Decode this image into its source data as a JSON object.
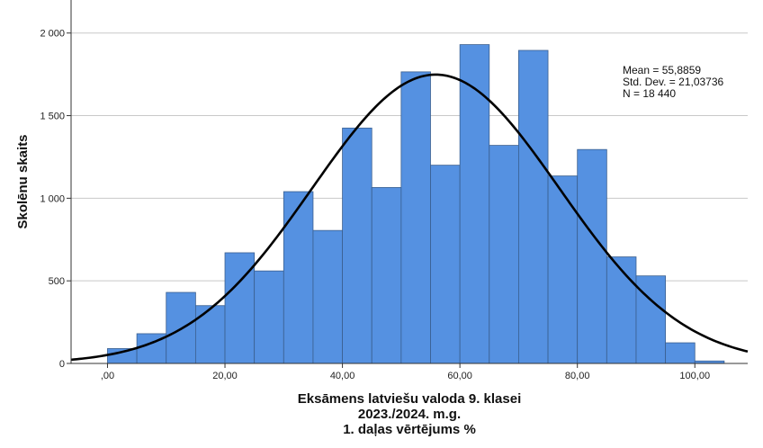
{
  "chart_data": {
    "type": "bar",
    "subtype": "histogram",
    "ylabel": "Skolēnu skaits",
    "xlabel_lines": [
      "Eksāmens latviešu valoda 9. klasei",
      "2023./2024. m.g.",
      "1. daļas vērtējums %"
    ],
    "stats_lines": [
      "Mean = 55,8859",
      "Std. Dev. = 21,03736",
      "N = 18 440"
    ],
    "mean": 55.8859,
    "std_dev": 21.03736,
    "n": 18440,
    "bin_width": 5,
    "x_range": [
      -6.2,
      109
    ],
    "ylim": [
      0,
      2200
    ],
    "x_ticks": [
      {
        "value": 0,
        "label": ",00"
      },
      {
        "value": 20,
        "label": "20,00"
      },
      {
        "value": 40,
        "label": "40,00"
      },
      {
        "value": 60,
        "label": "60,00"
      },
      {
        "value": 80,
        "label": "80,00"
      },
      {
        "value": 100,
        "label": "100,00"
      }
    ],
    "y_ticks": [
      {
        "value": 0,
        "label": "0"
      },
      {
        "value": 500,
        "label": "500"
      },
      {
        "value": 1000,
        "label": "1 000"
      },
      {
        "value": 1500,
        "label": "1 500"
      },
      {
        "value": 2000,
        "label": "2 000"
      }
    ],
    "grid": true,
    "bar_color": "#5591e1",
    "bar_edge_color": "#3a5f8f",
    "curve_color": "#000000",
    "bins": [
      {
        "x0": 0,
        "x1": 5,
        "count": 90
      },
      {
        "x0": 5,
        "x1": 10,
        "count": 180
      },
      {
        "x0": 10,
        "x1": 15,
        "count": 430
      },
      {
        "x0": 15,
        "x1": 20,
        "count": 350
      },
      {
        "x0": 20,
        "x1": 25,
        "count": 670
      },
      {
        "x0": 25,
        "x1": 30,
        "count": 560
      },
      {
        "x0": 30,
        "x1": 35,
        "count": 1040
      },
      {
        "x0": 35,
        "x1": 40,
        "count": 805
      },
      {
        "x0": 40,
        "x1": 45,
        "count": 1425
      },
      {
        "x0": 45,
        "x1": 50,
        "count": 1065
      },
      {
        "x0": 50,
        "x1": 55,
        "count": 1765
      },
      {
        "x0": 55,
        "x1": 60,
        "count": 1200
      },
      {
        "x0": 60,
        "x1": 65,
        "count": 1930
      },
      {
        "x0": 65,
        "x1": 70,
        "count": 1320
      },
      {
        "x0": 70,
        "x1": 75,
        "count": 1895
      },
      {
        "x0": 75,
        "x1": 80,
        "count": 1135
      },
      {
        "x0": 80,
        "x1": 85,
        "count": 1295
      },
      {
        "x0": 85,
        "x1": 90,
        "count": 645
      },
      {
        "x0": 90,
        "x1": 95,
        "count": 530
      },
      {
        "x0": 95,
        "x1": 100,
        "count": 125
      },
      {
        "x0": 100,
        "x1": 105,
        "count": 15
      }
    ]
  }
}
